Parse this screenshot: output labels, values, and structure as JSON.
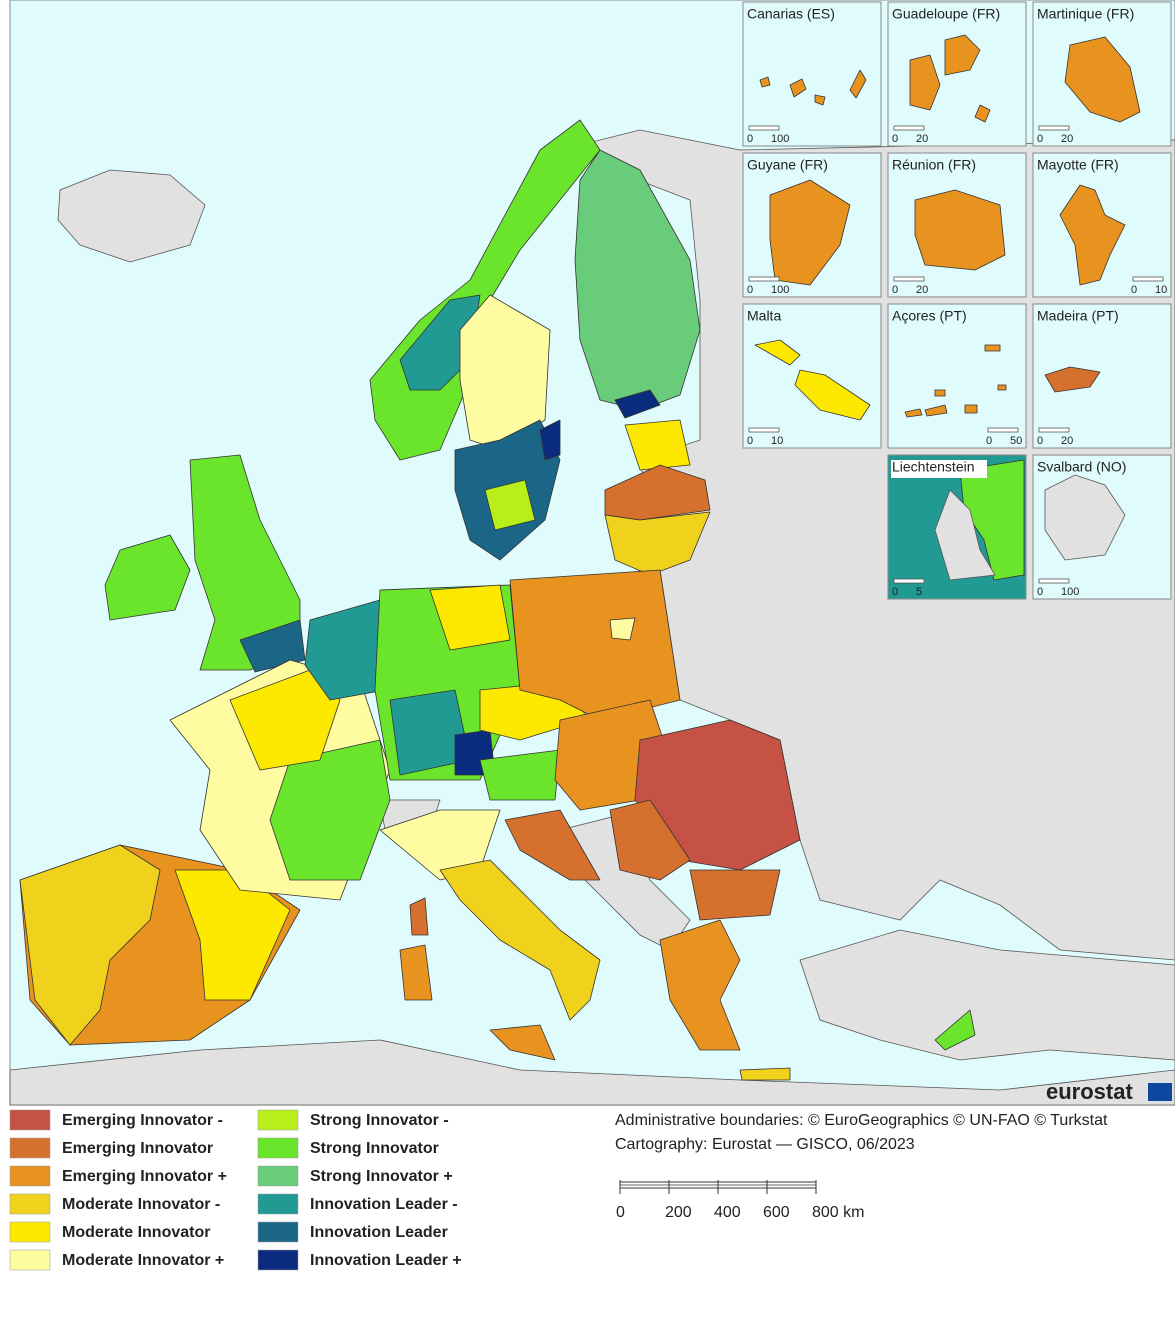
{
  "map": {
    "insets": [
      {
        "title": "Canarias (ES)",
        "scale": [
          0,
          100
        ]
      },
      {
        "title": "Guadeloupe (FR)",
        "scale": [
          0,
          20
        ]
      },
      {
        "title": "Martinique (FR)",
        "scale": [
          0,
          20
        ]
      },
      {
        "title": "Guyane (FR)",
        "scale": [
          0,
          100
        ]
      },
      {
        "title": "Réunion (FR)",
        "scale": [
          0,
          20
        ]
      },
      {
        "title": "Mayotte (FR)",
        "scale": [
          0,
          10
        ]
      },
      {
        "title": "Malta",
        "scale": [
          0,
          10
        ]
      },
      {
        "title": "Açores (PT)",
        "scale": [
          0,
          50
        ]
      },
      {
        "title": "Madeira (PT)",
        "scale": [
          0,
          20
        ]
      },
      {
        "title": "Liechtenstein",
        "scale": [
          0,
          5
        ]
      },
      {
        "title": "Svalbard (NO)",
        "scale": [
          0,
          100
        ]
      }
    ],
    "legend": [
      {
        "label": "Emerging Innovator -",
        "color": "#c65245"
      },
      {
        "label": "Emerging Innovator",
        "color": "#d5702e"
      },
      {
        "label": "Emerging Innovator +",
        "color": "#e8921f"
      },
      {
        "label": "Moderate Innovator -",
        "color": "#f0d11b"
      },
      {
        "label": "Moderate Innovator",
        "color": "#fde800"
      },
      {
        "label": "Moderate Innovator +",
        "color": "#fefba0"
      },
      {
        "label": "Strong Innovator -",
        "color": "#b8ef1b"
      },
      {
        "label": "Strong Innovator",
        "color": "#6be52b"
      },
      {
        "label": "Strong Innovator +",
        "color": "#68cc7a"
      },
      {
        "label": "Innovation Leader -",
        "color": "#219a93"
      },
      {
        "label": "Innovation Leader",
        "color": "#1b6687"
      },
      {
        "label": "Innovation Leader +",
        "color": "#0b2c7e"
      }
    ],
    "credits": [
      "Administrative boundaries: © EuroGeographics © UN-FAO © Turkstat",
      "Cartography: Eurostat — GISCO, 06/2023"
    ],
    "scale_bar": {
      "ticks": [
        0,
        200,
        400,
        600,
        {
          "value": 800,
          "label": "800 km"
        }
      ]
    },
    "logo": "eurostat"
  }
}
